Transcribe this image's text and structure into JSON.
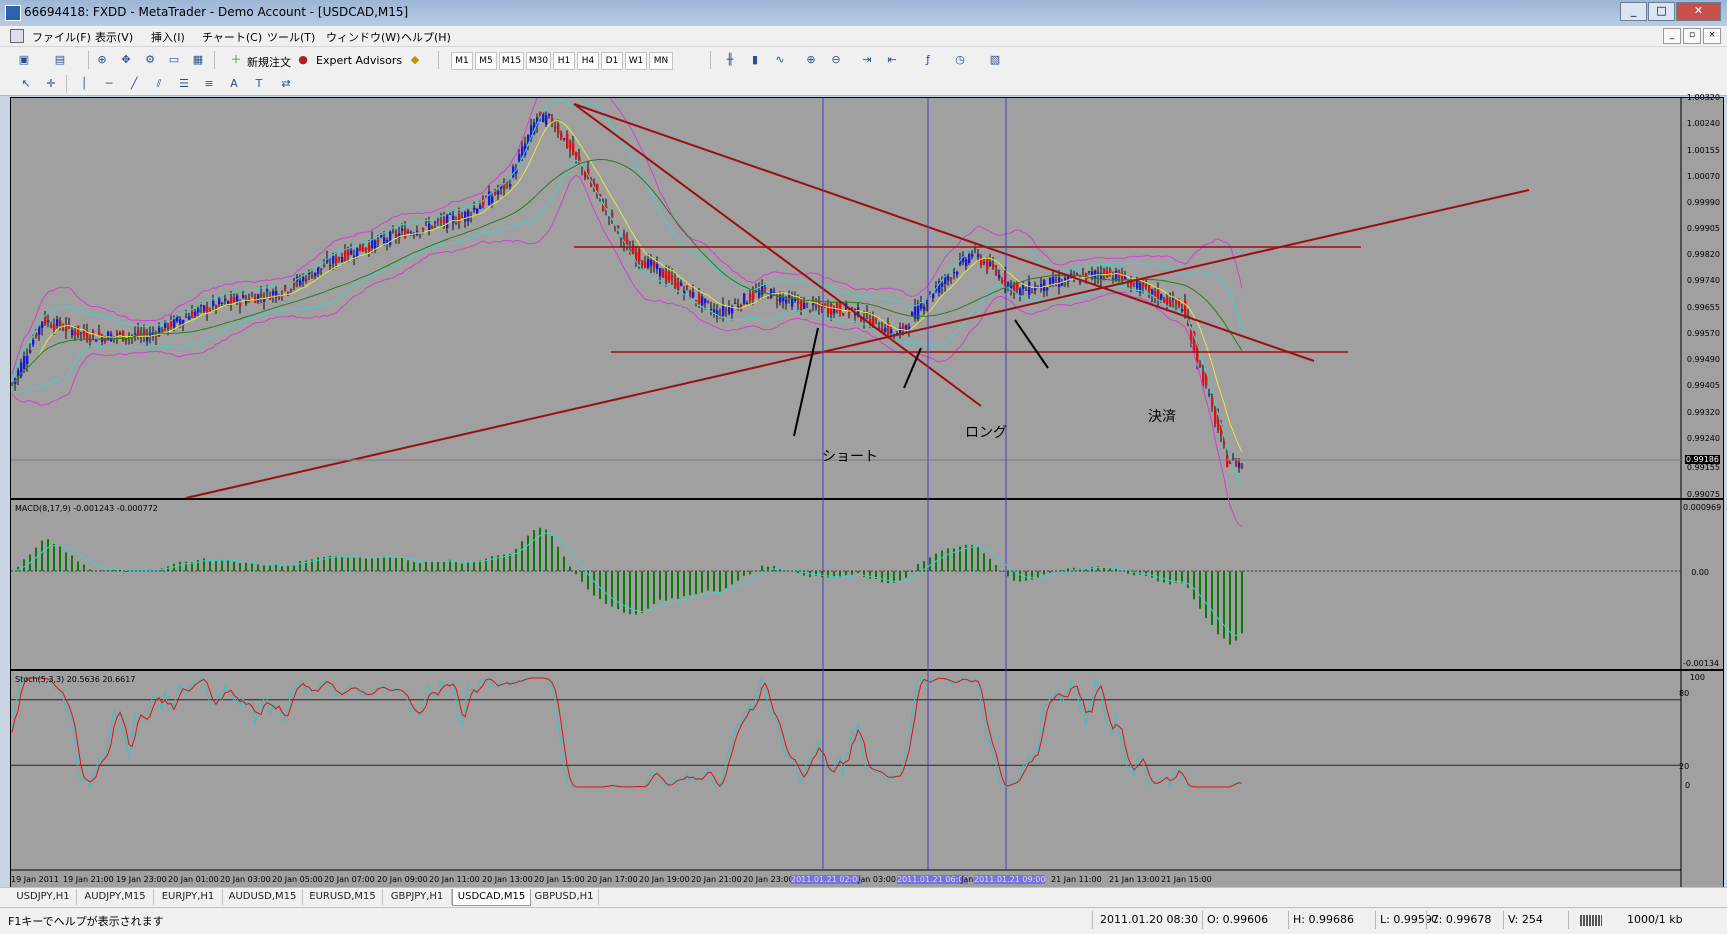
{
  "window": {
    "title": "66694418: FXDD - MetaTrader - Demo Account - [USDCAD,M15]",
    "buttons": [
      "_",
      "□",
      "✕"
    ]
  },
  "menu": {
    "items": [
      "ファイル(F)",
      "表示(V)",
      "挿入(I)",
      "チャート(C)",
      "ツール(T)",
      "ウィンドウ(W)",
      "ヘルプ(H)"
    ],
    "mdi_buttons": [
      "_",
      "▫",
      "×"
    ]
  },
  "toolbar": {
    "new_order_label": "新規注文",
    "expert_advisors_label": "Expert Advisors",
    "timeframes": [
      "M1",
      "M5",
      "M15",
      "M30",
      "H1",
      "H4",
      "D1",
      "W1",
      "MN"
    ],
    "text_tool": "A"
  },
  "chart": {
    "symbol": "USDCAD,M15",
    "price_labels": [
      "1.00320",
      "1.00240",
      "1.00155",
      "1.00070",
      "0.99990",
      "0.99905",
      "0.99820",
      "0.99740",
      "0.99655",
      "0.99570",
      "0.99490",
      "0.99405",
      "0.99320",
      "0.99240",
      "0.99186",
      "0.99155",
      "0.99075"
    ],
    "current_price": "0.99186",
    "macd_label": "MACD(8,17,9) -0.001243 -0.000772",
    "macd_scale": [
      "0.000969",
      "0.00",
      "-0.00134"
    ],
    "stoch_label": "Stoch(5,3,3) 20.5636 20.6617",
    "stoch_scale": [
      "100",
      "80",
      "20",
      "0"
    ],
    "time_labels": [
      "19 Jan 2011",
      "19 Jan 21:00",
      "19 Jan 23:00",
      "20 Jan 01:00",
      "20 Jan 03:00",
      "20 Jan 05:00",
      "20 Jan 07:00",
      "20 Jan 09:00",
      "20 Jan 11:00",
      "20 Jan 13:00",
      "20 Jan 15:00",
      "20 Jan 17:00",
      "20 Jan 19:00",
      "20 Jan 21:00",
      "20 Jan 23:00",
      "2011.01.21 02:00",
      "Jan 03:00",
      "2011.01.21 06:00",
      "Jan",
      "2011.01.21 09:00",
      "21 Jan 11:00",
      "21 Jan 13:00",
      "21 Jan 15:00"
    ],
    "annotations": {
      "short": "ショート",
      "long": "ロング",
      "settle": "決済"
    },
    "colors": {
      "background": "#a0a0a0",
      "bull_candle": "#1a1ad6",
      "bear_candle": "#e01010",
      "bollinger_outer": "#d040d0",
      "bollinger_mid": "#40d0d0",
      "ma_yellow": "#e6e640",
      "ma_green": "#208020",
      "trendline": "#9a1010",
      "macd_hist": "#0a7a0a",
      "macd_signal": "#40d0d0",
      "stoch_main": "#40c0c0",
      "stoch_signal": "#e01010"
    }
  },
  "tabs": [
    "USDJPY,H1",
    "AUDJPY,M15",
    "EURJPY,H1",
    "AUDUSD,M15",
    "EURUSD,M15",
    "GBPJPY,H1",
    "USDCAD,M15",
    "GBPUSD,H1"
  ],
  "active_tab": "USDCAD,M15",
  "status": {
    "help": "F1キーでヘルプが表示されます",
    "datetime": "2011.01.20 08:30",
    "open": "O: 0.99606",
    "high": "H: 0.99686",
    "low": "L: 0.99597",
    "close": "C: 0.99678",
    "volume": "V: 254",
    "traffic": "1000/1 kb"
  }
}
